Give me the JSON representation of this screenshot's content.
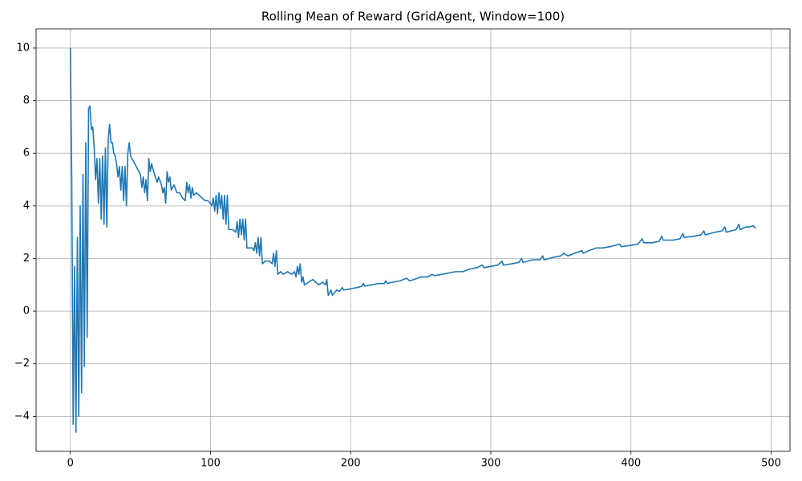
{
  "chart_data": {
    "type": "line",
    "title": "Rolling Mean of Reward (GridAgent, Window=100)",
    "color": "#1f77b4",
    "grid": true,
    "xlim": [
      -24.45,
      513.45
    ],
    "xticks": [
      0,
      100,
      200,
      300,
      400,
      500
    ],
    "ylim": [
      -5.33,
      10.73
    ],
    "yticks": [
      {
        "value": -4,
        "label": "−4"
      },
      {
        "value": -2,
        "label": "−2"
      },
      0,
      2,
      4,
      6,
      8,
      10
    ],
    "x": [
      0,
      1,
      2,
      3,
      4,
      5,
      6,
      7,
      8,
      9,
      10,
      11,
      12,
      13,
      14,
      15,
      16,
      17,
      18,
      19,
      20,
      21,
      22,
      23,
      24,
      25,
      26,
      27,
      28,
      29,
      30,
      31,
      32,
      33,
      34,
      35,
      36,
      37,
      38,
      39,
      40,
      41,
      42,
      43,
      44,
      46,
      48,
      50,
      51,
      52,
      53,
      54,
      55,
      56,
      57,
      58,
      60,
      62,
      63,
      65,
      66,
      67,
      68,
      69,
      70,
      71,
      72,
      74,
      76,
      78,
      80,
      82,
      83,
      84,
      85,
      86,
      87,
      88,
      90,
      92,
      94,
      96,
      98,
      100,
      101,
      102,
      103,
      104,
      105,
      106,
      107,
      108,
      109,
      110,
      111,
      112,
      113,
      116,
      118,
      119,
      120,
      121,
      122,
      123,
      124,
      125,
      126,
      128,
      130,
      131,
      132,
      133,
      134,
      135,
      136,
      137,
      139,
      142,
      144,
      145,
      146,
      147,
      148,
      150,
      152,
      155,
      158,
      160,
      161,
      162,
      163,
      164,
      165,
      166,
      167,
      170,
      173,
      175,
      177,
      180,
      182,
      183,
      184,
      186,
      187,
      190,
      192,
      194,
      195,
      200,
      205,
      208,
      209,
      210,
      215,
      220,
      224,
      225,
      226,
      230,
      235,
      240,
      242,
      245,
      250,
      255,
      258,
      260,
      265,
      270,
      275,
      280,
      285,
      290,
      294,
      295,
      300,
      305,
      308,
      309,
      315,
      320,
      322,
      323,
      330,
      335,
      337,
      338,
      345,
      350,
      352,
      355,
      360,
      365,
      366,
      370,
      375,
      380,
      385,
      392,
      393,
      400,
      405,
      408,
      409,
      415,
      420,
      422,
      423,
      430,
      435,
      437,
      438,
      445,
      450,
      452,
      453,
      460,
      465,
      467,
      468,
      475,
      477,
      478,
      482,
      485,
      487,
      489
    ],
    "values": [
      10,
      5,
      -4.3,
      1.7,
      -4.6,
      2.8,
      -4.0,
      4.0,
      -3.1,
      5.2,
      -2.1,
      6.4,
      -1.0,
      7.7,
      7.8,
      6.9,
      7.0,
      6.2,
      5.0,
      5.8,
      4.1,
      5.8,
      3.5,
      5.9,
      3.3,
      6.2,
      3.2,
      6.5,
      7.1,
      6.4,
      6.4,
      6.0,
      5.9,
      5.6,
      5.1,
      5.5,
      4.6,
      5.5,
      4.2,
      5.5,
      4.0,
      6.0,
      6.4,
      5.9,
      5.8,
      5.6,
      5.4,
      5.2,
      4.7,
      5.1,
      4.5,
      5.0,
      4.2,
      5.8,
      5.3,
      5.6,
      5.2,
      4.9,
      5.1,
      4.8,
      4.5,
      4.7,
      4.1,
      5.3,
      4.9,
      5.1,
      4.6,
      4.8,
      4.5,
      4.5,
      4.3,
      4.2,
      4.9,
      4.5,
      4.8,
      4.3,
      4.7,
      4.4,
      4.5,
      4.4,
      4.3,
      4.2,
      4.2,
      4.1,
      4.0,
      4.3,
      3.8,
      4.4,
      3.7,
      4.5,
      3.9,
      4.4,
      3.5,
      4.4,
      3.3,
      4.4,
      3.1,
      3.1,
      3.0,
      3.4,
      2.8,
      3.5,
      2.9,
      3.5,
      2.7,
      3.5,
      2.4,
      2.4,
      2.4,
      2.3,
      2.6,
      2.2,
      2.8,
      2.1,
      2.8,
      1.8,
      1.9,
      1.9,
      1.8,
      2.2,
      1.7,
      2.3,
      1.4,
      1.5,
      1.4,
      1.5,
      1.4,
      1.5,
      1.3,
      1.7,
      1.4,
      1.8,
      1.1,
      1.3,
      1.0,
      1.1,
      1.2,
      1.1,
      1.0,
      1.1,
      1.0,
      1.2,
      0.6,
      0.8,
      0.6,
      0.8,
      0.75,
      0.9,
      0.8,
      0.85,
      0.9,
      0.95,
      1.05,
      0.95,
      1.0,
      1.05,
      1.05,
      1.15,
      1.05,
      1.1,
      1.15,
      1.25,
      1.15,
      1.2,
      1.3,
      1.3,
      1.4,
      1.35,
      1.4,
      1.45,
      1.5,
      1.5,
      1.6,
      1.65,
      1.75,
      1.65,
      1.7,
      1.75,
      1.9,
      1.75,
      1.8,
      1.85,
      2.0,
      1.85,
      1.95,
      1.95,
      2.1,
      1.95,
      2.05,
      2.1,
      2.2,
      2.1,
      2.2,
      2.3,
      2.2,
      2.3,
      2.4,
      2.4,
      2.45,
      2.55,
      2.45,
      2.5,
      2.55,
      2.75,
      2.6,
      2.6,
      2.65,
      2.85,
      2.7,
      2.7,
      2.75,
      2.95,
      2.8,
      2.85,
      2.9,
      3.05,
      2.9,
      3.0,
      3.05,
      3.2,
      3.0,
      3.1,
      3.3,
      3.1,
      3.2,
      3.2,
      3.25,
      3.15
    ]
  }
}
